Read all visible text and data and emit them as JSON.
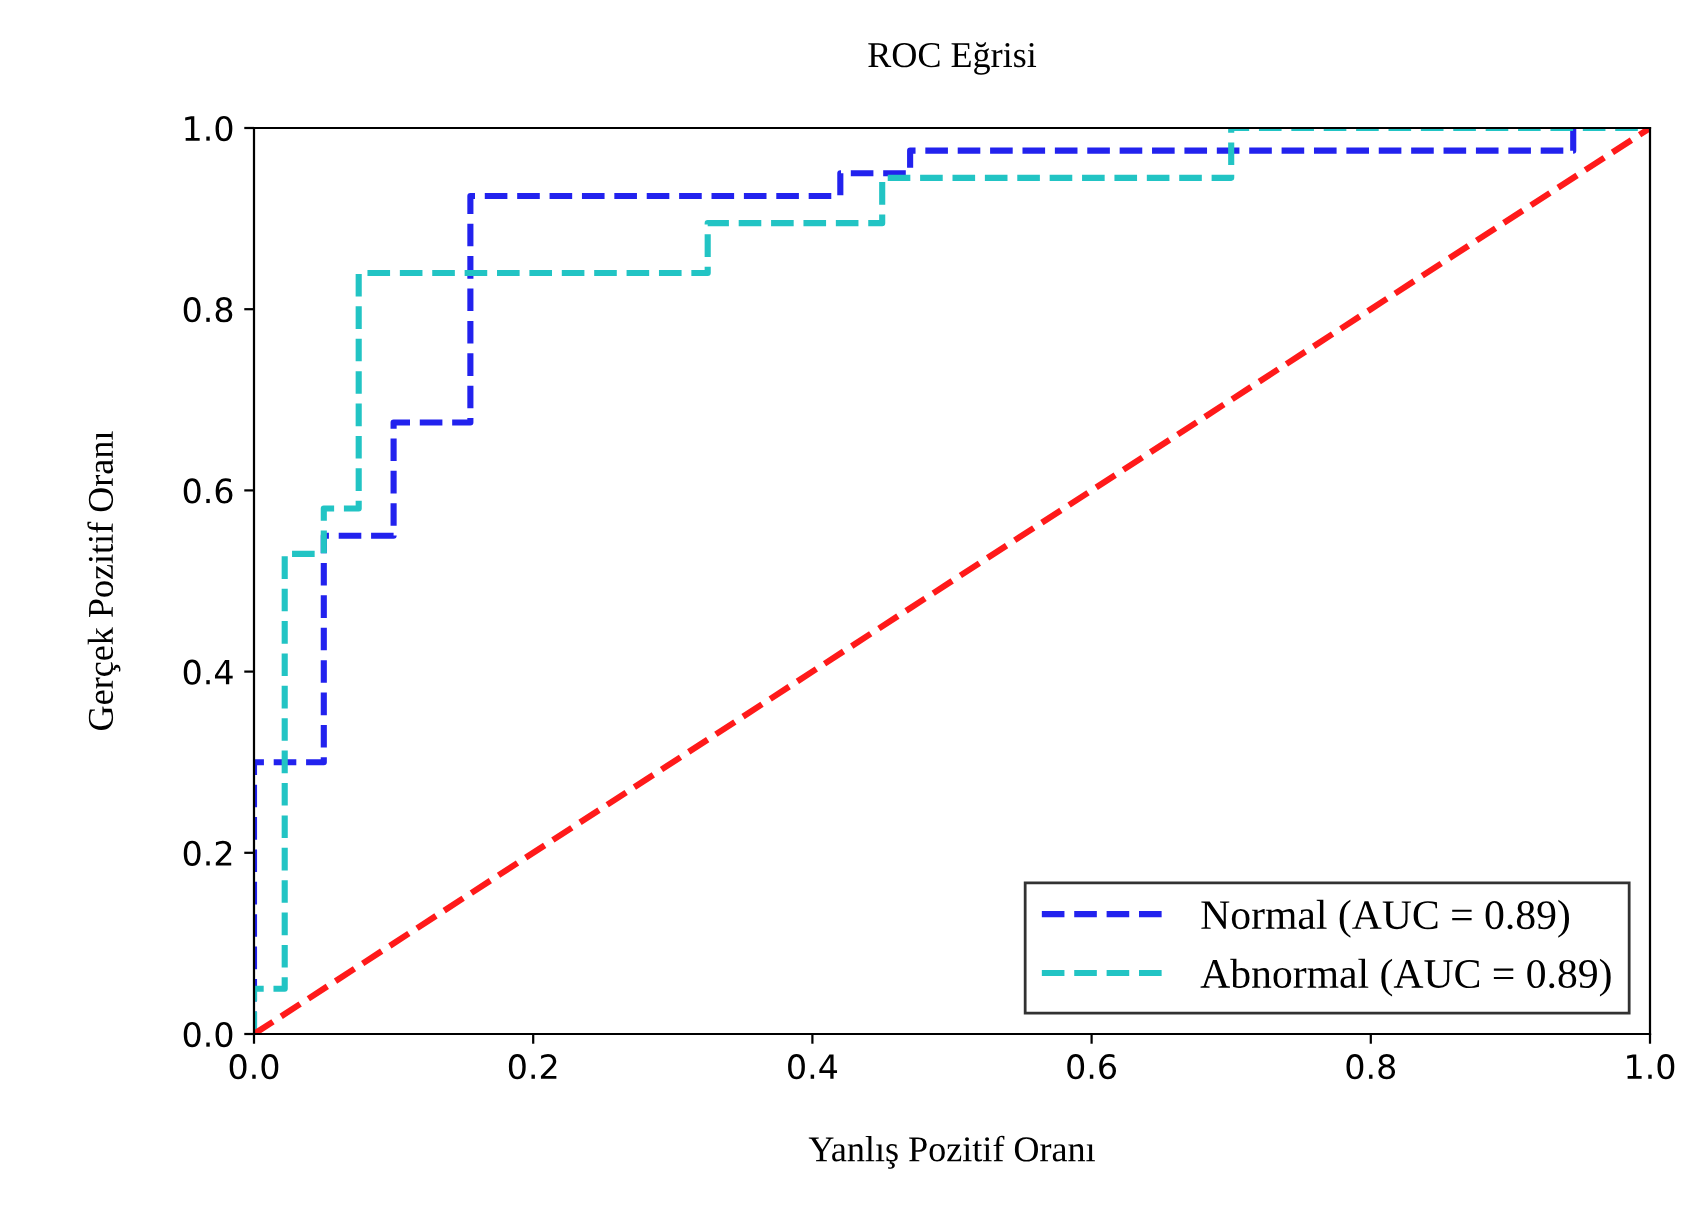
{
  "chart_data": {
    "type": "step",
    "title": "ROC Eğrisi",
    "xlabel": "Yanlış Pozitif Oranı",
    "ylabel": "Gerçek Pozitif Oranı",
    "series": [
      {
        "name": "Normal (AUC = 0.89)",
        "color": "#2222ee",
        "x": [
          0,
          0,
          0.05,
          0.1,
          0.155,
          0.42,
          0.47,
          0.945
        ],
        "values": [
          0,
          0.3,
          0.55,
          0.675,
          0.925,
          0.95,
          0.975,
          1.0
        ]
      },
      {
        "name": "Abnormal (AUC = 0.89)",
        "color": "#22c4c4",
        "x": [
          0,
          0,
          0.022,
          0.05,
          0.075,
          0.325,
          0.45,
          0.7,
          1
        ],
        "values": [
          0,
          0.05,
          0.53,
          0.58,
          0.84,
          0.895,
          0.945,
          1.0,
          1.0
        ]
      },
      {
        "type": "line",
        "color": "#ff1a1a",
        "x": [
          0,
          1
        ],
        "values": [
          0,
          1
        ]
      }
    ],
    "line_style": "dashed",
    "legend": "bottom right",
    "grid": false,
    "xlim": [
      0,
      1
    ],
    "ylim": [
      0,
      1
    ],
    "xticks": [
      {
        "value": 0,
        "label": "0.0"
      },
      {
        "value": 0.2,
        "label": "0.2"
      },
      {
        "value": 0.4,
        "label": "0.4"
      },
      {
        "value": 0.6,
        "label": "0.6"
      },
      {
        "value": 0.8,
        "label": "0.8"
      },
      {
        "value": 1,
        "label": "1.0"
      }
    ],
    "yticks": [
      {
        "value": 0,
        "label": "0.0"
      },
      {
        "value": 0.2,
        "label": "0.2"
      },
      {
        "value": 0.4,
        "label": "0.4"
      },
      {
        "value": 0.6,
        "label": "0.6"
      },
      {
        "value": 0.8,
        "label": "0.8"
      },
      {
        "value": 1,
        "label": "1.0"
      }
    ]
  }
}
